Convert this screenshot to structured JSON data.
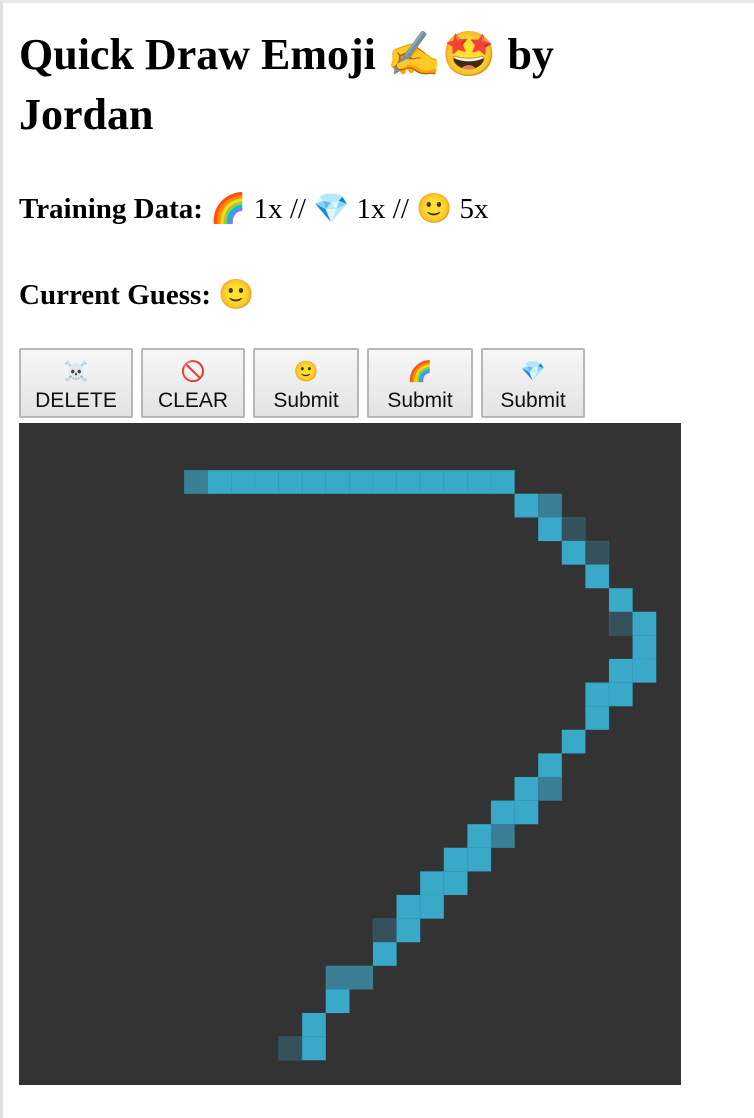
{
  "title": "Quick Draw Emoji ✍️🤩 by Jordan",
  "training": {
    "label": "Training Data:",
    "entries": [
      {
        "emoji": "🌈",
        "count": "1x"
      },
      {
        "emoji": "💎",
        "count": "1x"
      },
      {
        "emoji": "🙂",
        "count": "5x"
      }
    ],
    "separator": "//"
  },
  "guess": {
    "label": "Current Guess:",
    "emoji": "🙂"
  },
  "buttons": [
    {
      "icon": "☠️",
      "label": "DELETE"
    },
    {
      "icon": "🚫",
      "label": "CLEAR"
    },
    {
      "icon": "🙂",
      "label": "Submit"
    },
    {
      "icon": "🌈",
      "label": "Submit"
    },
    {
      "icon": "💎",
      "label": "Submit"
    }
  ],
  "canvas": {
    "background": "#333333",
    "stroke_color": "#3aa8c9",
    "dim_color": "#3a7f93",
    "faint_color": "#35525c"
  }
}
